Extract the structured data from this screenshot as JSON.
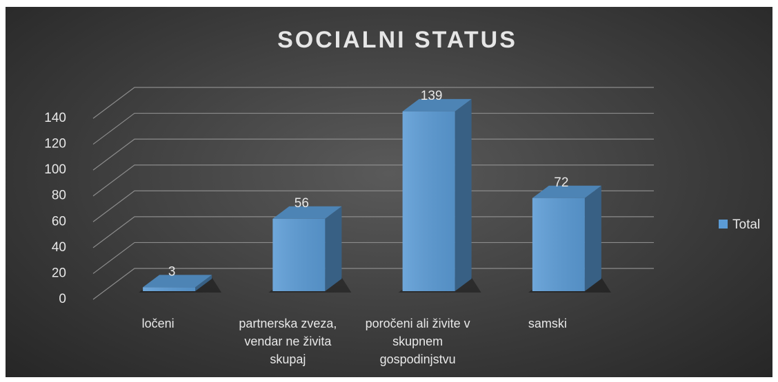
{
  "chart_data": {
    "type": "bar3d",
    "title": "SOCIALNI STATUS",
    "categories": [
      "ločeni",
      "partnerska zveza, vendar ne živita skupaj",
      "poročeni ali živite v skupnem gospodinjstvu",
      "samski"
    ],
    "series": [
      {
        "name": "Total",
        "color": "#5b9bd5",
        "values": [
          3,
          56,
          139,
          72
        ]
      }
    ],
    "ylim": [
      0,
      140
    ],
    "yticks": [
      0,
      20,
      40,
      60,
      80,
      100,
      120,
      140
    ],
    "grid": true,
    "legend": "right"
  }
}
